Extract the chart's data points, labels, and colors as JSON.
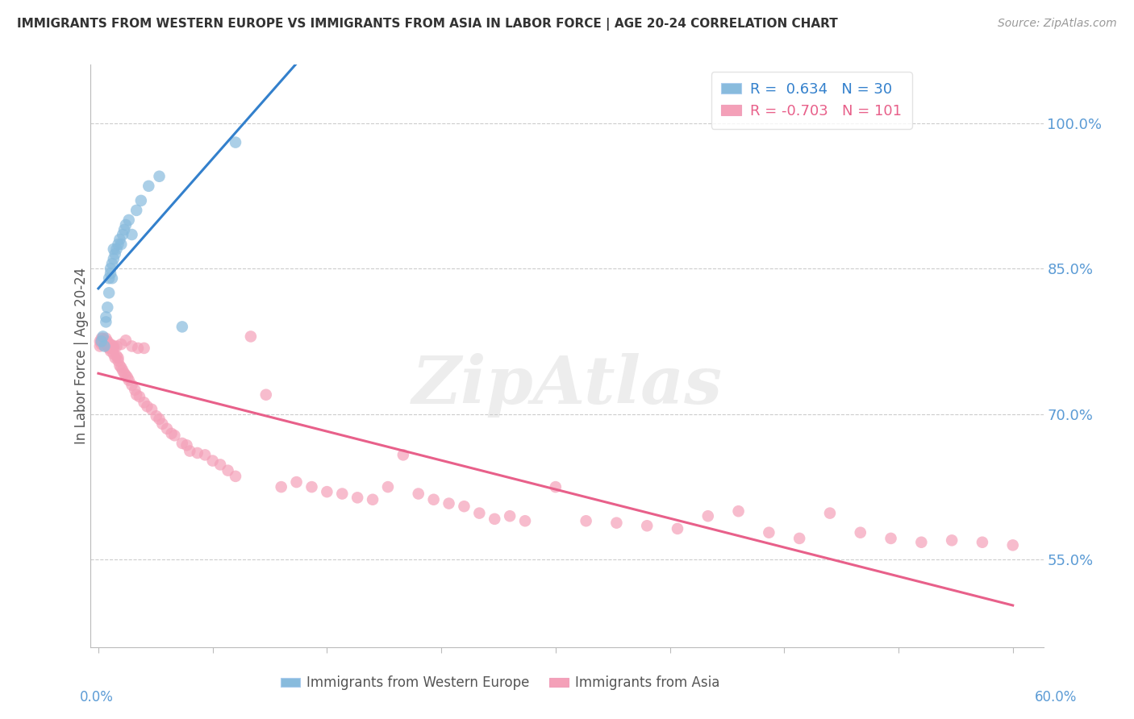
{
  "title": "IMMIGRANTS FROM WESTERN EUROPE VS IMMIGRANTS FROM ASIA IN LABOR FORCE | AGE 20-24 CORRELATION CHART",
  "source": "Source: ZipAtlas.com",
  "ylabel": "In Labor Force | Age 20-24",
  "right_ytick_vals": [
    0.55,
    0.7,
    0.85,
    1.0
  ],
  "right_yticklabels": [
    "55.0%",
    "70.0%",
    "85.0%",
    "100.0%"
  ],
  "legend_blue_r": " 0.634",
  "legend_blue_n": "30",
  "legend_pink_r": "-0.703",
  "legend_pink_n": "101",
  "blue_scatter_color": "#88bbdd",
  "pink_scatter_color": "#f4a0b8",
  "blue_line_color": "#3380cc",
  "pink_line_color": "#e8608a",
  "watermark": "ZipAtlas",
  "xlim": [
    -0.005,
    0.62
  ],
  "ylim": [
    0.46,
    1.06
  ],
  "blue_x": [
    0.002,
    0.003,
    0.004,
    0.005,
    0.005,
    0.006,
    0.007,
    0.007,
    0.008,
    0.008,
    0.009,
    0.009,
    0.01,
    0.01,
    0.011,
    0.012,
    0.013,
    0.014,
    0.015,
    0.016,
    0.017,
    0.018,
    0.02,
    0.022,
    0.025,
    0.028,
    0.033,
    0.04,
    0.055,
    0.09
  ],
  "blue_y": [
    0.775,
    0.78,
    0.77,
    0.795,
    0.8,
    0.81,
    0.825,
    0.84,
    0.845,
    0.85,
    0.84,
    0.855,
    0.86,
    0.87,
    0.865,
    0.87,
    0.875,
    0.88,
    0.875,
    0.885,
    0.89,
    0.895,
    0.9,
    0.885,
    0.91,
    0.92,
    0.935,
    0.945,
    0.79,
    0.98
  ],
  "pink_x": [
    0.001,
    0.001,
    0.002,
    0.002,
    0.002,
    0.003,
    0.003,
    0.003,
    0.004,
    0.004,
    0.005,
    0.005,
    0.005,
    0.006,
    0.006,
    0.007,
    0.007,
    0.008,
    0.008,
    0.009,
    0.01,
    0.01,
    0.011,
    0.012,
    0.013,
    0.013,
    0.014,
    0.015,
    0.016,
    0.017,
    0.018,
    0.019,
    0.02,
    0.022,
    0.024,
    0.025,
    0.027,
    0.03,
    0.032,
    0.035,
    0.038,
    0.04,
    0.042,
    0.045,
    0.048,
    0.05,
    0.055,
    0.058,
    0.06,
    0.065,
    0.07,
    0.075,
    0.08,
    0.085,
    0.09,
    0.1,
    0.11,
    0.12,
    0.13,
    0.14,
    0.15,
    0.16,
    0.17,
    0.18,
    0.19,
    0.2,
    0.21,
    0.22,
    0.23,
    0.24,
    0.25,
    0.26,
    0.27,
    0.28,
    0.3,
    0.32,
    0.34,
    0.36,
    0.38,
    0.4,
    0.42,
    0.44,
    0.46,
    0.48,
    0.5,
    0.52,
    0.54,
    0.56,
    0.58,
    0.6,
    0.002,
    0.004,
    0.006,
    0.008,
    0.01,
    0.012,
    0.015,
    0.018,
    0.022,
    0.026,
    0.03
  ],
  "pink_y": [
    0.775,
    0.77,
    0.778,
    0.772,
    0.775,
    0.776,
    0.773,
    0.778,
    0.774,
    0.776,
    0.773,
    0.775,
    0.778,
    0.772,
    0.77,
    0.768,
    0.772,
    0.768,
    0.765,
    0.77,
    0.768,
    0.762,
    0.758,
    0.76,
    0.755,
    0.758,
    0.75,
    0.748,
    0.745,
    0.742,
    0.74,
    0.738,
    0.735,
    0.73,
    0.725,
    0.72,
    0.718,
    0.712,
    0.708,
    0.705,
    0.698,
    0.695,
    0.69,
    0.685,
    0.68,
    0.678,
    0.67,
    0.668,
    0.662,
    0.66,
    0.658,
    0.652,
    0.648,
    0.642,
    0.636,
    0.78,
    0.72,
    0.625,
    0.63,
    0.625,
    0.62,
    0.618,
    0.614,
    0.612,
    0.625,
    0.658,
    0.618,
    0.612,
    0.608,
    0.605,
    0.598,
    0.592,
    0.595,
    0.59,
    0.625,
    0.59,
    0.588,
    0.585,
    0.582,
    0.595,
    0.6,
    0.578,
    0.572,
    0.598,
    0.578,
    0.572,
    0.568,
    0.57,
    0.568,
    0.565,
    0.775,
    0.775,
    0.775,
    0.772,
    0.77,
    0.77,
    0.772,
    0.776,
    0.77,
    0.768,
    0.768
  ]
}
